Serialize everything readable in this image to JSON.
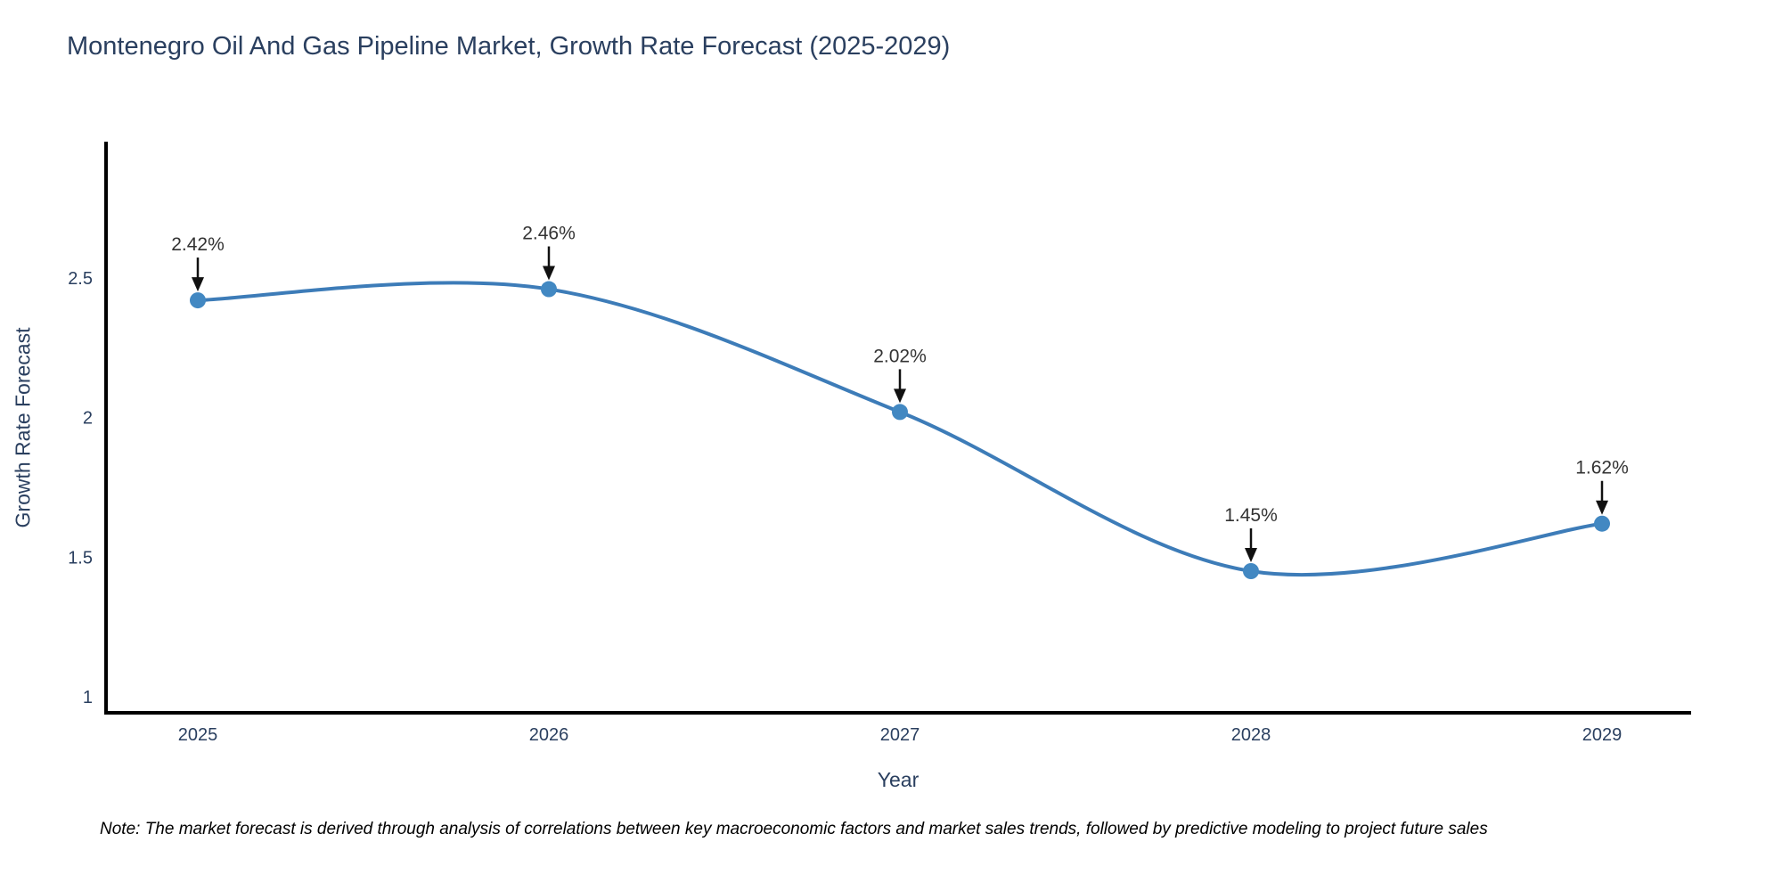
{
  "title": "Montenegro Oil And Gas Pipeline Market, Growth Rate Forecast (2025-2029)",
  "note": "Note: The market forecast is derived through analysis of correlations between key macroeconomic factors and market sales trends, followed by predictive modeling to project future sales",
  "chart_data": {
    "type": "line",
    "title": "Montenegro Oil And Gas Pipeline Market, Growth Rate Forecast (2025-2029)",
    "x": [
      "2025",
      "2026",
      "2027",
      "2028",
      "2029"
    ],
    "values": [
      2.42,
      2.46,
      2.02,
      1.45,
      1.62
    ],
    "point_labels": [
      "2.42%",
      "2.46%",
      "2.02%",
      "1.45%",
      "1.62%"
    ],
    "xlabel": "Year",
    "ylabel": "Growth Rate Forecast",
    "yticks": [
      2.5,
      2,
      1.5,
      1
    ],
    "ytick_labels": [
      "2.5",
      "2",
      "1.5",
      "1"
    ],
    "ylim": [
      0.94,
      2.99
    ],
    "line_shape": "spline",
    "grid": false,
    "legend_position": "none",
    "line_color": "#3d7cb8",
    "marker_color": "#4288c2",
    "axis_color": "#000000",
    "tick_text_color": "#2a3f5f",
    "annotation_text_color": "#333333",
    "annotation_arrow_color": "#111111",
    "background_color": "#ffffff"
  }
}
